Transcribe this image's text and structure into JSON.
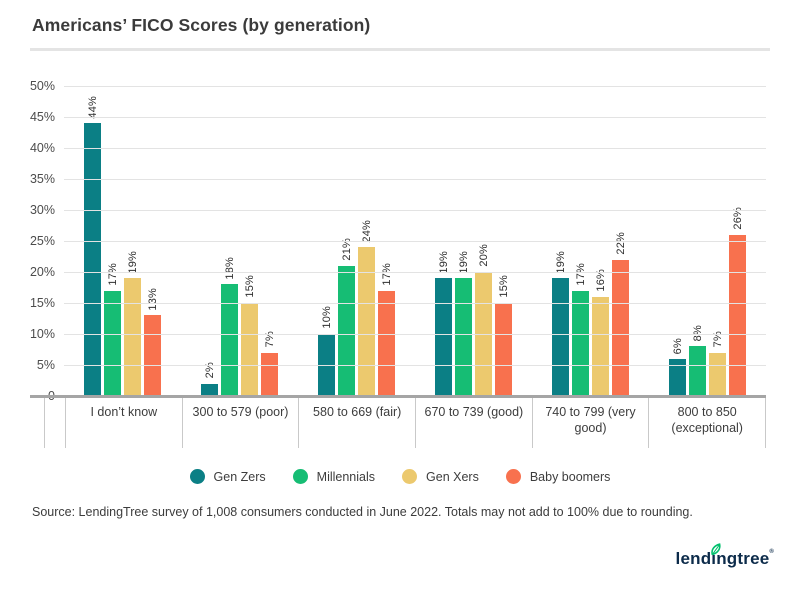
{
  "header": {
    "title": "Americans’ FICO Scores (by generation)"
  },
  "chart_data": {
    "type": "bar",
    "title": "Americans’ FICO Scores (by generation)",
    "categories": [
      "I don’t know",
      "300 to 579 (poor)",
      "580 to 669 (fair)",
      "670 to 739 (good)",
      "740 to 799 (very good)",
      "800 to 850 (exceptional)"
    ],
    "series": [
      {
        "name": "Gen Zers",
        "color": "#0b7f85",
        "values": [
          44,
          2,
          10,
          19,
          19,
          6
        ]
      },
      {
        "name": "Millennials",
        "color": "#16bd74",
        "values": [
          17,
          18,
          21,
          19,
          17,
          8
        ]
      },
      {
        "name": "Gen Xers",
        "color": "#ecc96e",
        "values": [
          19,
          15,
          24,
          20,
          16,
          7
        ]
      },
      {
        "name": "Baby boomers",
        "color": "#f8714e",
        "values": [
          13,
          7,
          17,
          15,
          22,
          26
        ]
      }
    ],
    "value_suffix": "%",
    "ylim": [
      0,
      50
    ],
    "yticks": [
      {
        "label": "50%",
        "value": 50
      },
      {
        "label": "45%",
        "value": 45
      },
      {
        "label": "40%",
        "value": 40
      },
      {
        "label": "35%",
        "value": 35
      },
      {
        "label": "30%",
        "value": 30
      },
      {
        "label": "25%",
        "value": 25
      },
      {
        "label": "20%",
        "value": 20
      },
      {
        "label": "15%",
        "value": 15
      },
      {
        "label": "10%",
        "value": 10
      },
      {
        "label": "5%",
        "value": 5
      },
      {
        "label": "0",
        "value": 0
      }
    ],
    "xlabel": "",
    "ylabel": "",
    "grid": "horizontal",
    "legend_position": "bottom",
    "data_labels": "percent-rotated-90-above-bars"
  },
  "footer": {
    "source": "Source: LendingTree survey of 1,008 consumers conducted in June 2022. Totals may not add to 100% due to rounding.",
    "logo": {
      "text_start": "lend",
      "text_i": "ı",
      "text_end": "ngtree",
      "mark": "®",
      "navy": "#0c2b4a",
      "leaf_green": "#00c06d"
    }
  }
}
